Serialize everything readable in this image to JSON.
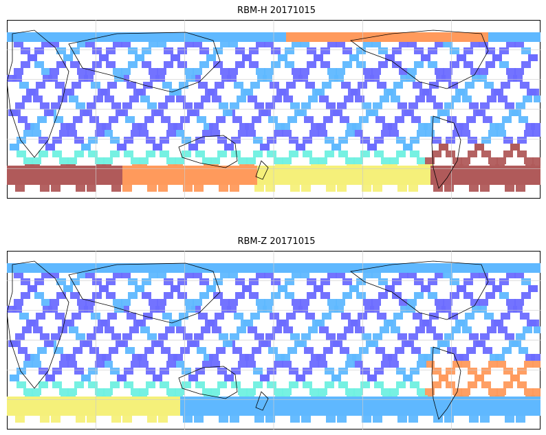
{
  "panels": [
    {
      "id": "top",
      "title": "RBM-H 20171015"
    },
    {
      "id": "bottom",
      "title": "RBM-Z 20171015"
    }
  ],
  "colors": {
    "low": "#6b6bff",
    "mid_low": "#5fb8ff",
    "mid": "#6ff0e0",
    "mid_high": "#f5f07a",
    "high": "#ff9a5c",
    "very_high": "#b05a5a",
    "coast": "#000000",
    "grid": "#cccccc"
  }
}
